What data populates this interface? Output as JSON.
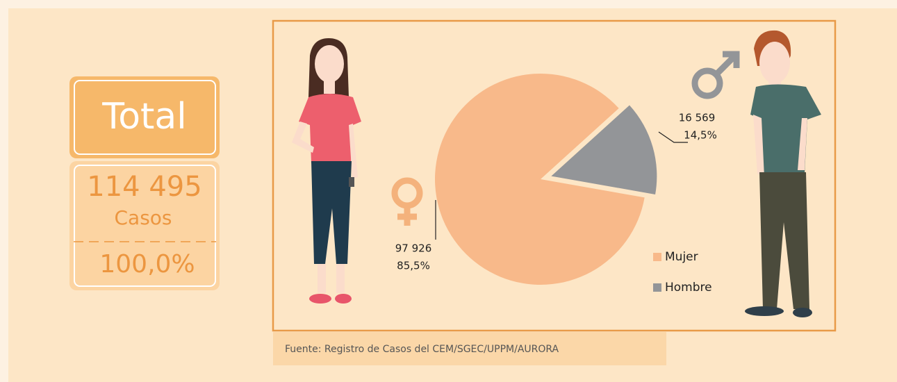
{
  "summary": {
    "title": "Total",
    "count_label": "114 495",
    "unit": "Casos",
    "share_label": "100,0%"
  },
  "chart_data": {
    "type": "pie",
    "categories": [
      "Mujer",
      "Hombre"
    ],
    "values": [
      85.5,
      14.5
    ],
    "value_labels": [
      "85,5%",
      "14,5%"
    ],
    "counts": [
      97926,
      16569
    ],
    "count_labels": [
      "97 926",
      "16 569"
    ],
    "colors": [
      "#f8b98a",
      "#939598"
    ],
    "legend": "lower right"
  },
  "source": "Fuente: Registro de Casos del CEM/SGEC/UPPM/AURORA"
}
